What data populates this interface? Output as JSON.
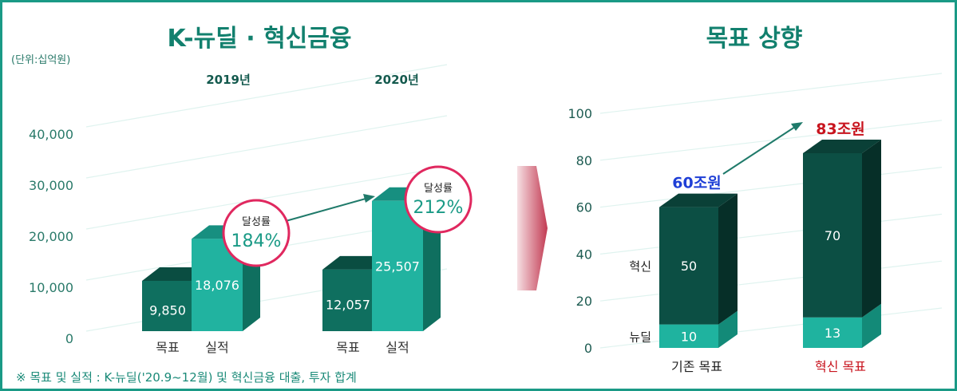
{
  "left_panel": {
    "title": "K-뉴딜 · 혁신금융",
    "unit": "(단위:십억원)",
    "footnote": "※ 목표 및 실적 : K-뉴딜('20.9~12월) 및 혁신금융 대출, 투자 합계"
  },
  "right_panel": {
    "title": "목표 상향"
  },
  "colors": {
    "dark_green": "#0f6f5f",
    "teal": "#21b3a0",
    "frame": "#1a9a86",
    "axis_text": "#2a7a6a",
    "circle_border": "#e0285f",
    "blue_label": "#1f3fd6",
    "red_label": "#c8141e"
  },
  "chart_data": [
    {
      "type": "bar",
      "title": "K-뉴딜 · 혁신금융",
      "unit": "(단위:십억원)",
      "groups": [
        "2019년",
        "2020년"
      ],
      "categories": [
        "목표",
        "실적"
      ],
      "series": [
        {
          "values": [
            9850,
            12057
          ]
        },
        {
          "values": [
            18076,
            25507
          ]
        }
      ],
      "value_labels": [
        [
          "9,850",
          "18,076"
        ],
        [
          "12,057",
          "25,507"
        ]
      ],
      "annotations": [
        {
          "line1": "달성률",
          "line2": "184%"
        },
        {
          "line1": "달성률",
          "line2": "212%"
        }
      ],
      "yticks": [
        0,
        10000,
        20000,
        30000,
        40000
      ],
      "ytick_labels": [
        "0",
        "10,000",
        "20,000",
        "30,000",
        "40,000"
      ],
      "ylim": [
        0,
        44000
      ]
    },
    {
      "type": "bar",
      "stacked": true,
      "title": "목표 상향",
      "categories": [
        "기존 목표",
        "혁신 목표"
      ],
      "series": [
        {
          "name": "뉴딜",
          "values": [
            10,
            13
          ]
        },
        {
          "name": "혁신",
          "values": [
            50,
            70
          ]
        }
      ],
      "totals": [
        "60조원",
        "83조원"
      ],
      "yticks": [
        0,
        20,
        40,
        60,
        80,
        100
      ],
      "ylim": [
        0,
        100
      ]
    }
  ]
}
